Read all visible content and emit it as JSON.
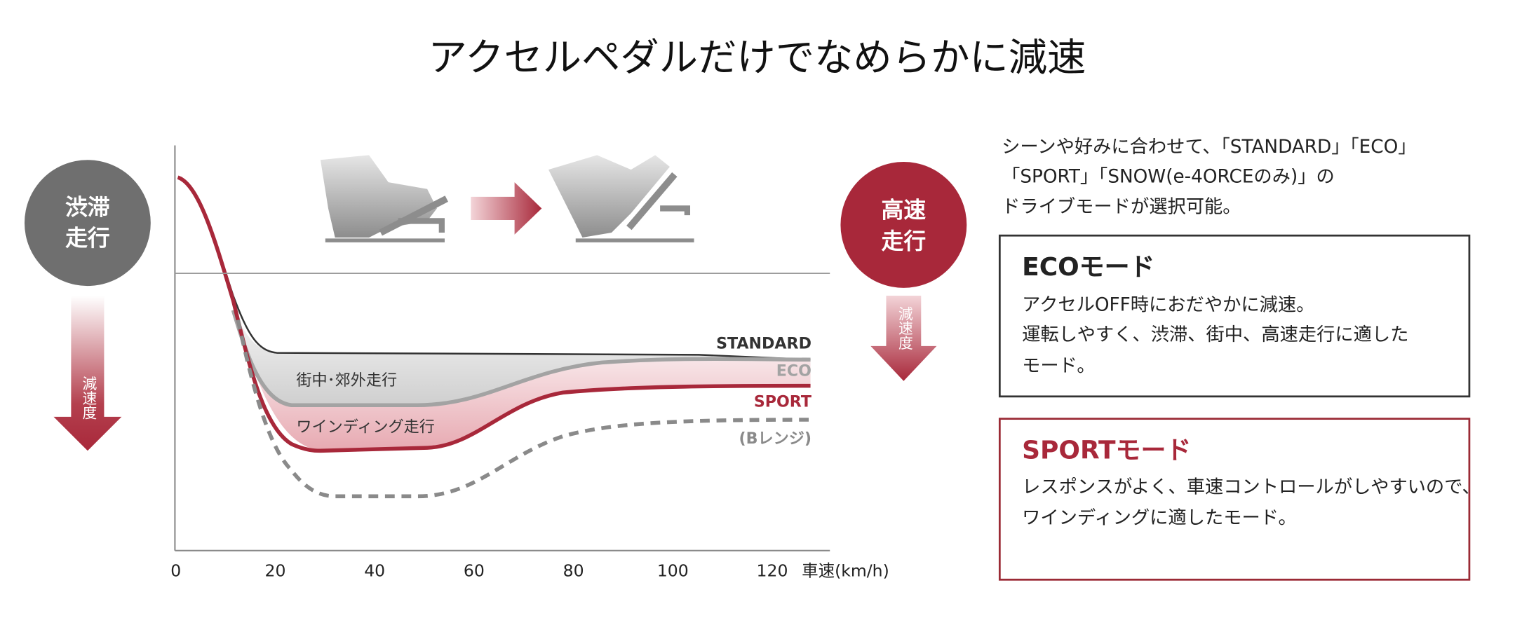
{
  "title": "アクセルペダルだけでなめらかに減速",
  "chart": {
    "xlim": [
      0,
      132
    ],
    "xticks": [
      0,
      20,
      40,
      60,
      80,
      100,
      120
    ],
    "x_label": "車速(km/h)",
    "series": [
      {
        "name": "STANDARD",
        "color": "#333333"
      },
      {
        "name": "ECO",
        "color": "#a3a3a3"
      },
      {
        "name": "SPORT",
        "color": "#a8283a"
      },
      {
        "name": "(Bレンジ)",
        "color": "#8a8a8a"
      }
    ],
    "regions": [
      "街中･郊外走行",
      "ワインディング走行"
    ],
    "left_badge": {
      "lines": [
        "渋滞",
        "走行"
      ],
      "arrow_label": "減速度"
    },
    "right_badge": {
      "lines": [
        "高速",
        "走行"
      ],
      "arrow_label": "減速度"
    }
  },
  "intro": [
    "シーンや好みに合わせて、「STANDARD」「ECO」",
    "「SPORT」「SNOW(e-4ORCEのみ)」の",
    "ドライブモードが選択可能。"
  ],
  "panels": [
    {
      "title": "ECOモード",
      "lines": [
        "アクセルOFF時におだやかに減速。",
        "運転しやすく、渋滞、街中、高速走行に適した",
        "モード。"
      ]
    },
    {
      "title": "SPORTモード",
      "lines": [
        "レスポンスがよく、車速コントロールがしやすいので、",
        "ワインディングに適したモード。"
      ]
    }
  ]
}
